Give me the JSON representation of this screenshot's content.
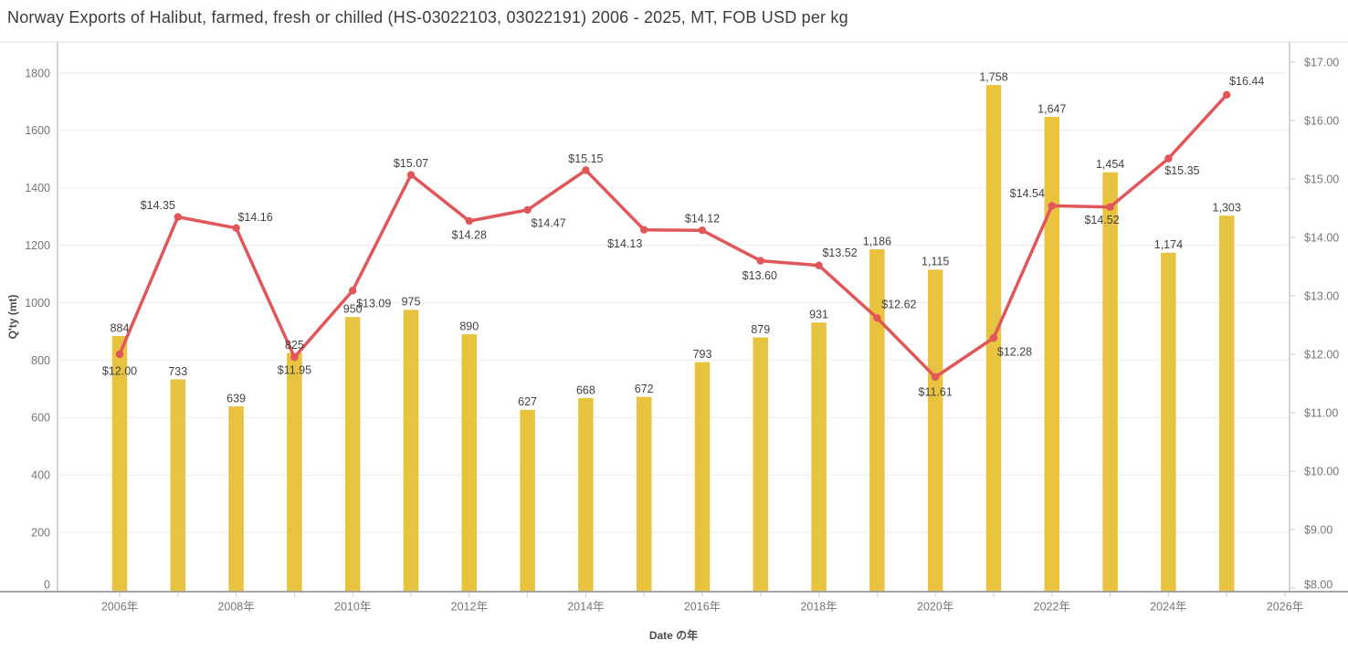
{
  "title": "Norway Exports of Halibut, farmed, fresh or chilled (HS-03022103, 03022191) 2006 - 2025, MT, FOB USD per kg",
  "colors": {
    "bar": "#E8C340",
    "line": "#E15759",
    "grid": "#ebebeb",
    "axis_line": "#9a9a9a",
    "frame_line": "#c9c9c9",
    "tick_label": "#767676",
    "value_label": "#424242",
    "divider": "#e0e0e0"
  },
  "chart_data": {
    "type": "combo_bar_line",
    "title": "Norway Exports of Halibut, farmed, fresh or chilled (HS-03022103, 03022191) 2006 - 2025, MT, FOB USD per kg",
    "grid": "horizontal",
    "legend": "none",
    "x": [
      2006,
      2007,
      2008,
      2009,
      2010,
      2011,
      2012,
      2013,
      2014,
      2015,
      2016,
      2017,
      2018,
      2019,
      2020,
      2021,
      2022,
      2023,
      2024,
      2025
    ],
    "series": [
      {
        "name": "Q'ty (mt)",
        "type": "bar",
        "color": "#E8C340",
        "values": [
          884,
          733,
          639,
          825,
          950,
          975,
          890,
          627,
          668,
          672,
          793,
          879,
          931,
          1186,
          1115,
          1758,
          1647,
          1454,
          1174,
          1303
        ],
        "labels": [
          "884",
          "733",
          "639",
          "825",
          "950",
          "975",
          "890",
          "627",
          "668",
          "672",
          "793",
          "879",
          "931",
          "1,186",
          "1,115",
          "1,758",
          "1,647",
          "1,454",
          "1,174",
          "1,303"
        ]
      },
      {
        "name": "FOB USD per kg",
        "type": "line",
        "color": "#E15759",
        "values": [
          12.0,
          14.35,
          14.16,
          11.95,
          13.09,
          15.07,
          14.28,
          14.47,
          15.15,
          14.13,
          14.12,
          13.6,
          13.52,
          12.62,
          11.61,
          12.28,
          14.54,
          14.52,
          15.35,
          16.44
        ],
        "labels": [
          "$12.00",
          "$14.35",
          "$14.16",
          "$11.95",
          "$13.09",
          "$15.07",
          "$14.28",
          "$14.47",
          "$15.15",
          "$14.13",
          "$14.12",
          "$13.60",
          "$13.52",
          "$12.62",
          "$11.61",
          "$12.28",
          "$14.54",
          "$14.52",
          "$15.35",
          "$16.44"
        ],
        "label_offsets": [
          [
            0,
            18
          ],
          [
            -22,
            -13
          ],
          [
            21,
            -12
          ],
          [
            0,
            14
          ],
          [
            23,
            14
          ],
          [
            0,
            -13
          ],
          [
            0,
            15
          ],
          [
            23,
            14
          ],
          [
            0,
            -13
          ],
          [
            -21,
            15
          ],
          [
            0,
            -13
          ],
          [
            -1,
            16
          ],
          [
            23,
            -14
          ],
          [
            24,
            -15
          ],
          [
            0,
            16
          ],
          [
            23,
            15
          ],
          [
            -27,
            -14
          ],
          [
            -9,
            14
          ],
          [
            15,
            13
          ],
          [
            22,
            -15
          ]
        ]
      }
    ],
    "left_axis": {
      "title": "Q'ty (mt)",
      "ticks": [
        0,
        200,
        400,
        600,
        800,
        1000,
        1200,
        1400,
        1600,
        1800
      ],
      "tick_labels": [
        "0",
        "200",
        "400",
        "600",
        "800",
        "1000",
        "1200",
        "1400",
        "1600",
        "1800"
      ],
      "range": [
        0,
        1870
      ]
    },
    "right_axis": {
      "title": "",
      "ticks": [
        8,
        9,
        10,
        11,
        12,
        13,
        14,
        15,
        16,
        17
      ],
      "tick_labels": [
        "$8.00",
        "$9.00",
        "$10.00",
        "$11.00",
        "$12.00",
        "$13.00",
        "$14.00",
        "$15.00",
        "$16.00",
        "$17.00"
      ],
      "range": [
        8,
        17.4
      ]
    },
    "x_axis": {
      "title": "Date の年",
      "ticks": [
        2006,
        2007,
        2008,
        2009,
        2010,
        2011,
        2012,
        2013,
        2014,
        2015,
        2016,
        2017,
        2018,
        2019,
        2020,
        2021,
        2022,
        2023,
        2024,
        2025,
        2026
      ],
      "tick_labels": [
        "2006年",
        "",
        "2008年",
        "",
        "2010年",
        "",
        "2012年",
        "",
        "2014年",
        "",
        "2016年",
        "",
        "2018年",
        "",
        "2020年",
        "",
        "2022年",
        "",
        "2024年",
        "",
        "2026年"
      ]
    }
  }
}
